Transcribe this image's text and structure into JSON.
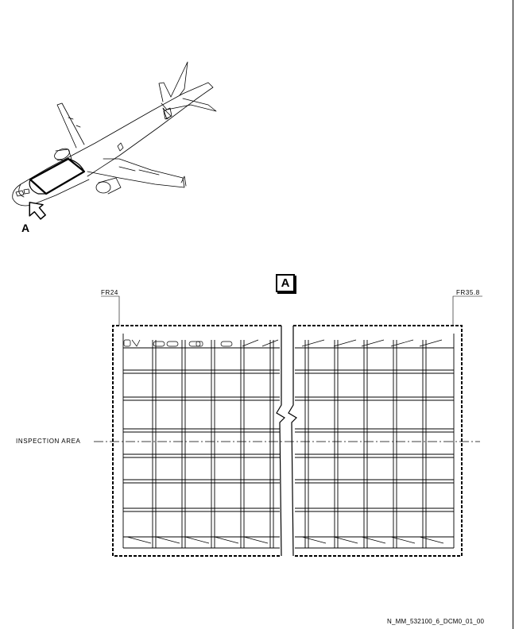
{
  "view_label": "A",
  "detail_label": "A",
  "frame_start": "FR24",
  "frame_end": "FR35.8",
  "inspection_label": "INSPECTION AREA",
  "figure_id": "N_MM_532100_6_DCM0_01_00",
  "icons": {
    "aircraft": "aircraft-illustration",
    "arrow": "view-arrow-icon"
  }
}
